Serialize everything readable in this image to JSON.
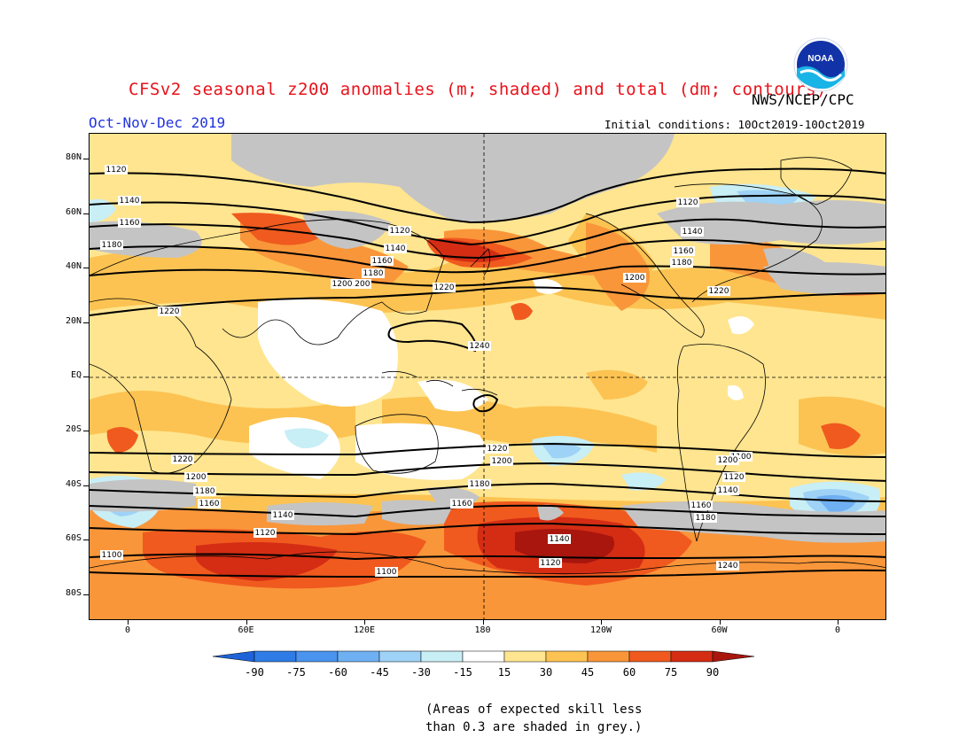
{
  "title": "CFSv2 seasonal z200 anomalies (m; shaded) and total (dm; contours)",
  "credit": "NWS/NCEP/CPC",
  "period": "Oct-Nov-Dec 2019",
  "initial_conditions": "Initial conditions: 10Oct2019-10Oct2019",
  "logo_text": "NOAA",
  "lat_ticks": [
    "80N",
    "60N",
    "40N",
    "20N",
    "EQ",
    "20S",
    "40S",
    "60S",
    "80S"
  ],
  "lat_values": [
    80,
    60,
    40,
    20,
    0,
    -20,
    -40,
    -60,
    -80
  ],
  "lon_ticks": [
    "0",
    "60E",
    "120E",
    "180",
    "120W",
    "60W",
    "0"
  ],
  "lon_values": [
    0,
    60,
    120,
    180,
    240,
    300,
    360
  ],
  "colorbar": {
    "labels": [
      "-90",
      "-75",
      "-60",
      "-45",
      "-30",
      "-15",
      "15",
      "30",
      "45",
      "60",
      "75",
      "90"
    ],
    "colors": [
      "#1e64d8",
      "#2f7ce6",
      "#4a93ee",
      "#6fb0f2",
      "#9ed2f6",
      "#c8eef6",
      "#ffffff",
      "#ffe58f",
      "#fcc352",
      "#f9963a",
      "#f05a1e",
      "#d42d14",
      "#a8160e"
    ]
  },
  "note_lines": [
    "(Areas of expected skill less",
    "than 0.3 are shaded in grey.)"
  ],
  "contour_labels": [
    "1120",
    "1140",
    "1160",
    "1180",
    "1200",
    "1220",
    "1240",
    "1220",
    "1200",
    "1180",
    "1160",
    "1140",
    "1120",
    "1100",
    "1120",
    "1140",
    "1160",
    "1180",
    "1200",
    "1220",
    "1100",
    "1120",
    "1140",
    "1160",
    "1180",
    "1200",
    "1220",
    "1120",
    "1140",
    "1160",
    "1180",
    "1200",
    "1220",
    "1240",
    "1100",
    "1120",
    "1140",
    "1160",
    "1180",
    "1200",
    "1220"
  ]
}
